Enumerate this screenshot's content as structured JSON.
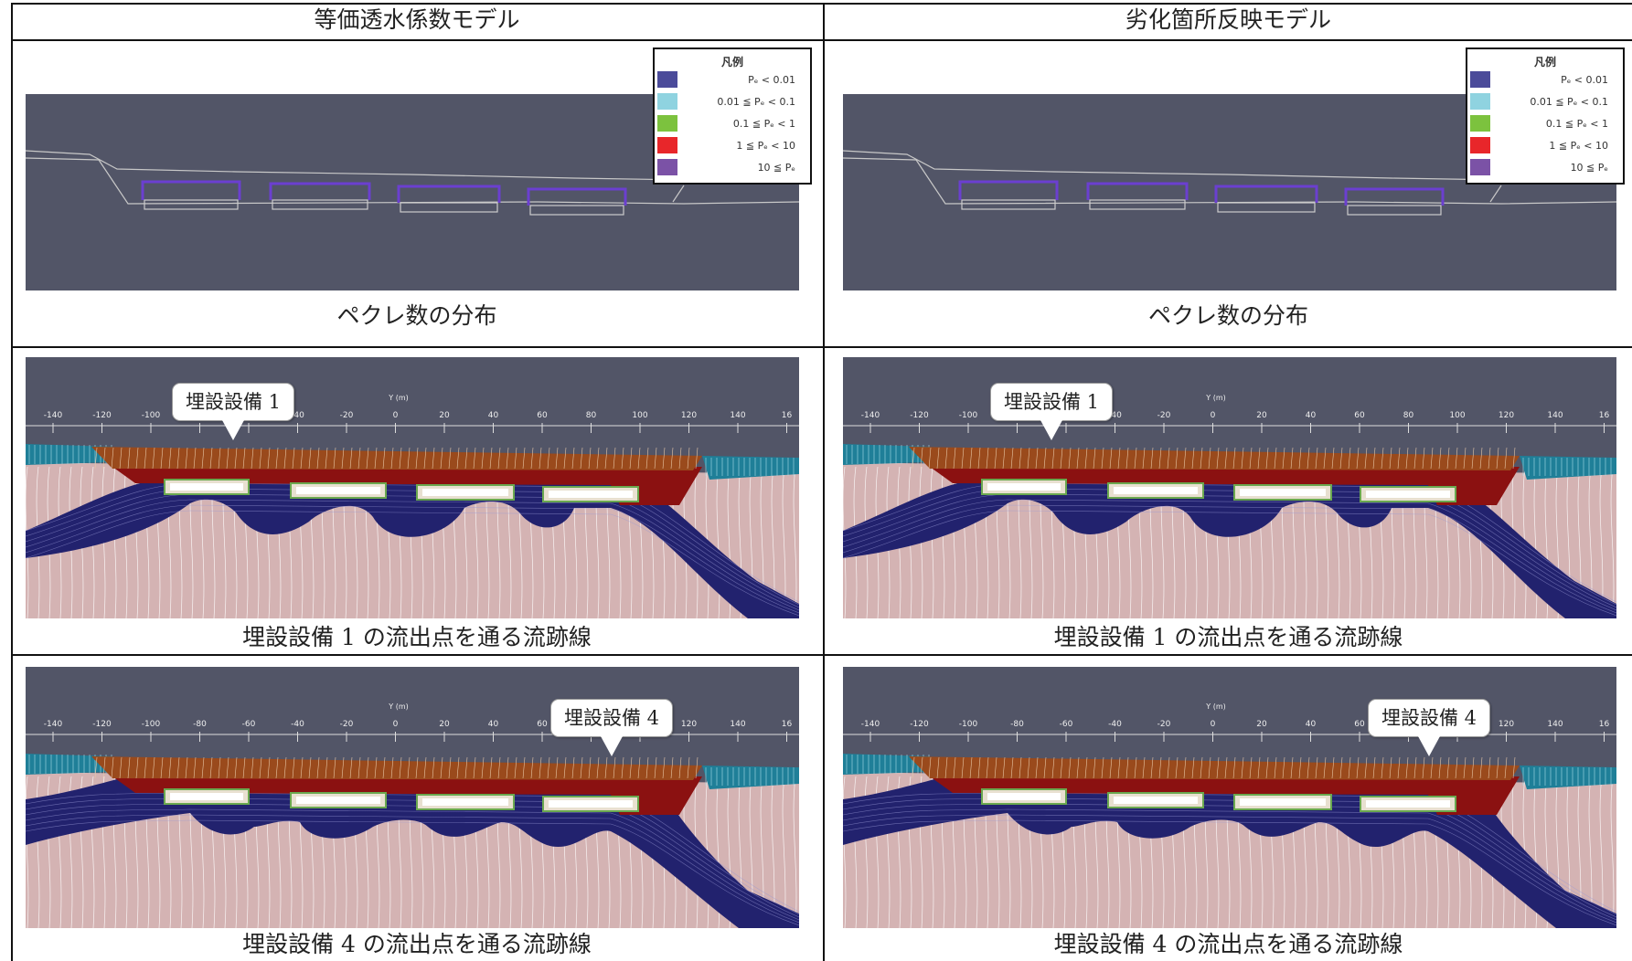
{
  "headers": {
    "left": "等価透水係数モデル",
    "right": "劣化箇所反映モデル"
  },
  "captions": {
    "peclet": "ペクレ数の分布",
    "stream1": "埋設設備 1 の流出点を通る流跡線",
    "stream4": "埋設設備 4 の流出点を通る流跡線"
  },
  "legend": {
    "title": "凡例",
    "items": [
      {
        "label": "Pₑ < 0.01",
        "color": "#4b4b9a"
      },
      {
        "label": "0.01 ≦ Pₑ < 0.1",
        "color": "#8fd3e0"
      },
      {
        "label": "0.1 ≦ Pₑ < 1",
        "color": "#7cc23e"
      },
      {
        "label": "1 ≦ Pₑ < 10",
        "color": "#e8262a"
      },
      {
        "label": "10 ≦ Pₑ",
        "color": "#7b52a6"
      }
    ]
  },
  "callouts": {
    "facility1": "埋設設備 1",
    "facility4": "埋設設備 4"
  },
  "axis": {
    "label": "Y (m)",
    "ticks": [
      "-140",
      "-120",
      "-100",
      "-80",
      "-60",
      "-40",
      "-20",
      "0",
      "20",
      "40",
      "60",
      "80",
      "100",
      "120",
      "140",
      "16"
    ]
  },
  "colors": {
    "background_slate": "#525567",
    "soil": "#d4b3b3",
    "cover": "#9a4a1c",
    "dense_flow": "#22226e",
    "side_teal": "#1f7f98"
  }
}
